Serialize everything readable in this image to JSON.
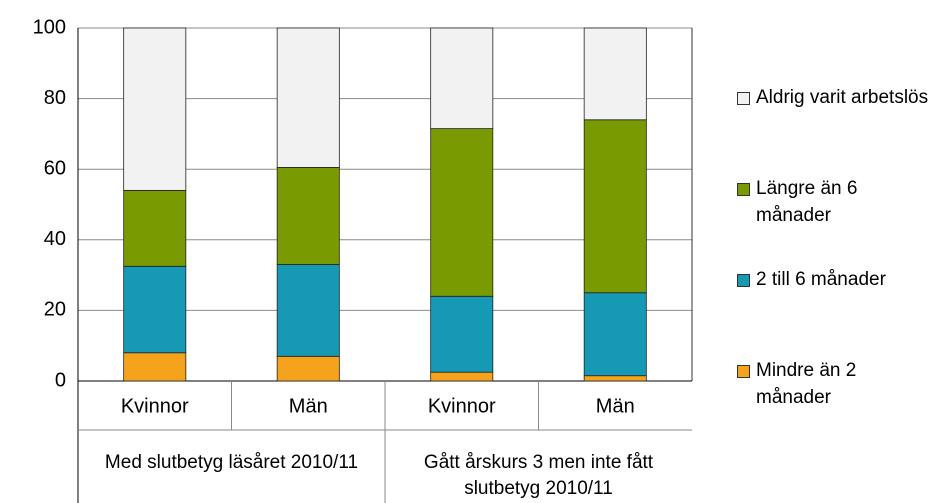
{
  "chart_data": {
    "type": "stacked_bar",
    "categories": [
      "Kvinnor",
      "Män",
      "Kvinnor",
      "Män"
    ],
    "groups": [
      "Med slutbetyg läsåret 2010/11",
      "Gått årskurs 3 men inte fått slutbetyg 2010/11"
    ],
    "series": [
      {
        "name": "Mindre än 2 månader",
        "color": "#f5a31c",
        "values": [
          8,
          7,
          2.5,
          1.5
        ]
      },
      {
        "name": "2 till 6 månader",
        "color": "#1699b4",
        "values": [
          24.5,
          26,
          21.5,
          23.5
        ]
      },
      {
        "name": "Längre än 6 månader",
        "color": "#7a9a01",
        "values": [
          21.5,
          27.5,
          47.5,
          49
        ]
      },
      {
        "name": "Aldrig varit arbetslös",
        "color": "#f2f2f2",
        "values": [
          46,
          39.5,
          28.5,
          26
        ]
      }
    ],
    "ylim": [
      0,
      100
    ],
    "yticks": [
      0,
      20,
      40,
      60,
      80,
      100
    ],
    "grid": true,
    "legend": "right"
  }
}
